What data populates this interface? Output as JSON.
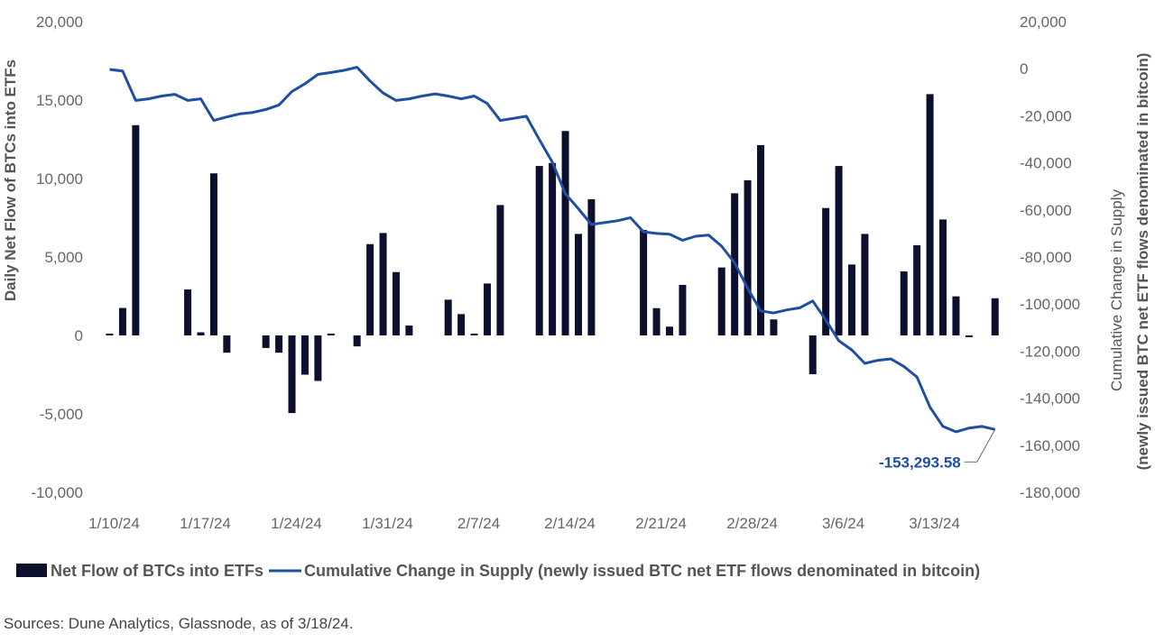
{
  "chart_data": {
    "type": "bar+line",
    "colors": {
      "bars": "#0c0f2e",
      "line": "#1f4fa0",
      "annotation": "#1f4fa0"
    },
    "left_axis": {
      "label": "Daily Net Flow of BTCs into ETFs",
      "range": [
        -10000,
        20000
      ],
      "ticks": [
        "20,000",
        "15,000",
        "10,000",
        "5,000",
        "0",
        "-5,000",
        "-10,000"
      ],
      "tick_values": [
        20000,
        15000,
        10000,
        5000,
        0,
        -5000,
        -10000
      ]
    },
    "right_axis": {
      "label_line1": "Cumulative Change in Supply",
      "label_line2": "(newly issued BTC net ETF flows denominated in bitcoin)",
      "range": [
        -180000,
        20000
      ],
      "ticks": [
        "20,000",
        "0",
        "-20,000",
        "-40,000",
        "-60,000",
        "-80,000",
        "-100,000",
        "-120,000",
        "-140,000",
        "-160,000",
        "-180,000"
      ],
      "tick_values": [
        20000,
        0,
        -20000,
        -40000,
        -60000,
        -80000,
        -100000,
        -120000,
        -140000,
        -160000,
        -180000
      ]
    },
    "x_axis": {
      "ticks": [
        "1/10/24",
        "1/17/24",
        "1/24/24",
        "1/31/24",
        "2/7/24",
        "2/14/24",
        "2/21/24",
        "2/28/24",
        "3/6/24",
        "3/13/24"
      ],
      "range": [
        "1/10/24",
        "3/18/24"
      ]
    },
    "grid": false,
    "legend": {
      "placement": "bottom",
      "bars_label": "Net Flow of BTCs into ETFs",
      "line_label": "Cumulative Change in Supply (newly issued BTC net ETF flows denominated in bitcoin)"
    },
    "bar_series": {
      "name": "Net Flow of BTCs into ETFs",
      "axis": "left",
      "points": [
        [
          "1/10/24",
          100
        ],
        [
          "1/11/24",
          1750
        ],
        [
          "1/12/24",
          13400
        ],
        [
          "1/16/24",
          2930
        ],
        [
          "1/17/24",
          200
        ],
        [
          "1/18/24",
          10330
        ],
        [
          "1/19/24",
          -1100
        ],
        [
          "1/22/24",
          -800
        ],
        [
          "1/23/24",
          -1100
        ],
        [
          "1/24/24",
          -4950
        ],
        [
          "1/25/24",
          -2500
        ],
        [
          "1/26/24",
          -2900
        ],
        [
          "1/27/24",
          100
        ],
        [
          "1/29/24",
          -700
        ],
        [
          "1/30/24",
          5820
        ],
        [
          "1/31/24",
          6530
        ],
        [
          "2/1/24",
          4040
        ],
        [
          "2/2/24",
          630
        ],
        [
          "2/5/24",
          2280
        ],
        [
          "2/6/24",
          1360
        ],
        [
          "2/7/24",
          100
        ],
        [
          "2/8/24",
          3310
        ],
        [
          "2/9/24",
          8310
        ],
        [
          "2/12/24",
          10800
        ],
        [
          "2/13/24",
          10990
        ],
        [
          "2/14/24",
          13030
        ],
        [
          "2/15/24",
          6470
        ],
        [
          "2/16/24",
          8680
        ],
        [
          "2/20/24",
          6720
        ],
        [
          "2/21/24",
          1740
        ],
        [
          "2/22/24",
          560
        ],
        [
          "2/23/24",
          3220
        ],
        [
          "2/26/24",
          4330
        ],
        [
          "2/27/24",
          9060
        ],
        [
          "2/28/24",
          9890
        ],
        [
          "2/29/24",
          12130
        ],
        [
          "3/1/24",
          1020
        ],
        [
          "3/4/24",
          -2470
        ],
        [
          "3/5/24",
          8120
        ],
        [
          "3/6/24",
          10800
        ],
        [
          "3/7/24",
          4520
        ],
        [
          "3/8/24",
          6470
        ],
        [
          "3/11/24",
          4080
        ],
        [
          "3/12/24",
          5750
        ],
        [
          "3/13/24",
          15380
        ],
        [
          "3/14/24",
          7390
        ],
        [
          "3/15/24",
          2490
        ],
        [
          "3/16/24",
          -100
        ],
        [
          "3/18/24",
          2370
        ]
      ]
    },
    "line_series": {
      "name": "Cumulative Change in Supply (newly issued BTC net ETF flows denominated in bitcoin)",
      "axis": "right",
      "points": [
        [
          "1/10/24",
          -300
        ],
        [
          "1/11/24",
          -1000
        ],
        [
          "1/12/24",
          -13500
        ],
        [
          "1/13/24",
          -12800
        ],
        [
          "1/14/24",
          -11600
        ],
        [
          "1/15/24",
          -10900
        ],
        [
          "1/16/24",
          -13500
        ],
        [
          "1/17/24",
          -12800
        ],
        [
          "1/18/24",
          -22000
        ],
        [
          "1/19/24",
          -20500
        ],
        [
          "1/20/24",
          -19200
        ],
        [
          "1/21/24",
          -18600
        ],
        [
          "1/22/24",
          -17300
        ],
        [
          "1/23/24",
          -15400
        ],
        [
          "1/24/24",
          -9700
        ],
        [
          "1/25/24",
          -6400
        ],
        [
          "1/26/24",
          -2400
        ],
        [
          "1/27/24",
          -1600
        ],
        [
          "1/28/24",
          -700
        ],
        [
          "1/29/24",
          600
        ],
        [
          "1/30/24",
          -5200
        ],
        [
          "1/31/24",
          -10300
        ],
        [
          "2/1/24",
          -13500
        ],
        [
          "2/2/24",
          -12800
        ],
        [
          "2/3/24",
          -11600
        ],
        [
          "2/4/24",
          -10700
        ],
        [
          "2/5/24",
          -11600
        ],
        [
          "2/6/24",
          -12800
        ],
        [
          "2/7/24",
          -11600
        ],
        [
          "2/8/24",
          -14800
        ],
        [
          "2/9/24",
          -22000
        ],
        [
          "2/10/24",
          -21100
        ],
        [
          "2/11/24",
          -20200
        ],
        [
          "2/12/24",
          -30100
        ],
        [
          "2/13/24",
          -39700
        ],
        [
          "2/14/24",
          -53100
        ],
        [
          "2/15/24",
          -59500
        ],
        [
          "2/16/24",
          -66200
        ],
        [
          "2/17/24",
          -65400
        ],
        [
          "2/18/24",
          -64600
        ],
        [
          "2/19/24",
          -63300
        ],
        [
          "2/20/24",
          -69300
        ],
        [
          "2/21/24",
          -70000
        ],
        [
          "2/22/24",
          -70300
        ],
        [
          "2/23/24",
          -72900
        ],
        [
          "2/24/24",
          -71200
        ],
        [
          "2/25/24",
          -70700
        ],
        [
          "2/26/24",
          -75400
        ],
        [
          "2/27/24",
          -82500
        ],
        [
          "2/28/24",
          -93300
        ],
        [
          "2/29/24",
          -102900
        ],
        [
          "3/1/24",
          -103800
        ],
        [
          "3/2/24",
          -102500
        ],
        [
          "3/3/24",
          -101600
        ],
        [
          "3/4/24",
          -98700
        ],
        [
          "3/5/24",
          -106700
        ],
        [
          "3/6/24",
          -115600
        ],
        [
          "3/7/24",
          -119500
        ],
        [
          "3/8/24",
          -125200
        ],
        [
          "3/9/24",
          -123900
        ],
        [
          "3/10/24",
          -123300
        ],
        [
          "3/11/24",
          -126500
        ],
        [
          "3/12/24",
          -131000
        ],
        [
          "3/13/24",
          -143800
        ],
        [
          "3/14/24",
          -152000
        ],
        [
          "3/15/24",
          -154300
        ],
        [
          "3/16/24",
          -152700
        ],
        [
          "3/17/24",
          -152000
        ],
        [
          "3/18/24",
          -153293.58
        ]
      ]
    },
    "annotation": {
      "text": "-153,293.58",
      "date": "3/18/24"
    }
  },
  "footer": {
    "sources": "Sources: Dune Analytics, Glassnode, as of 3/18/24."
  }
}
